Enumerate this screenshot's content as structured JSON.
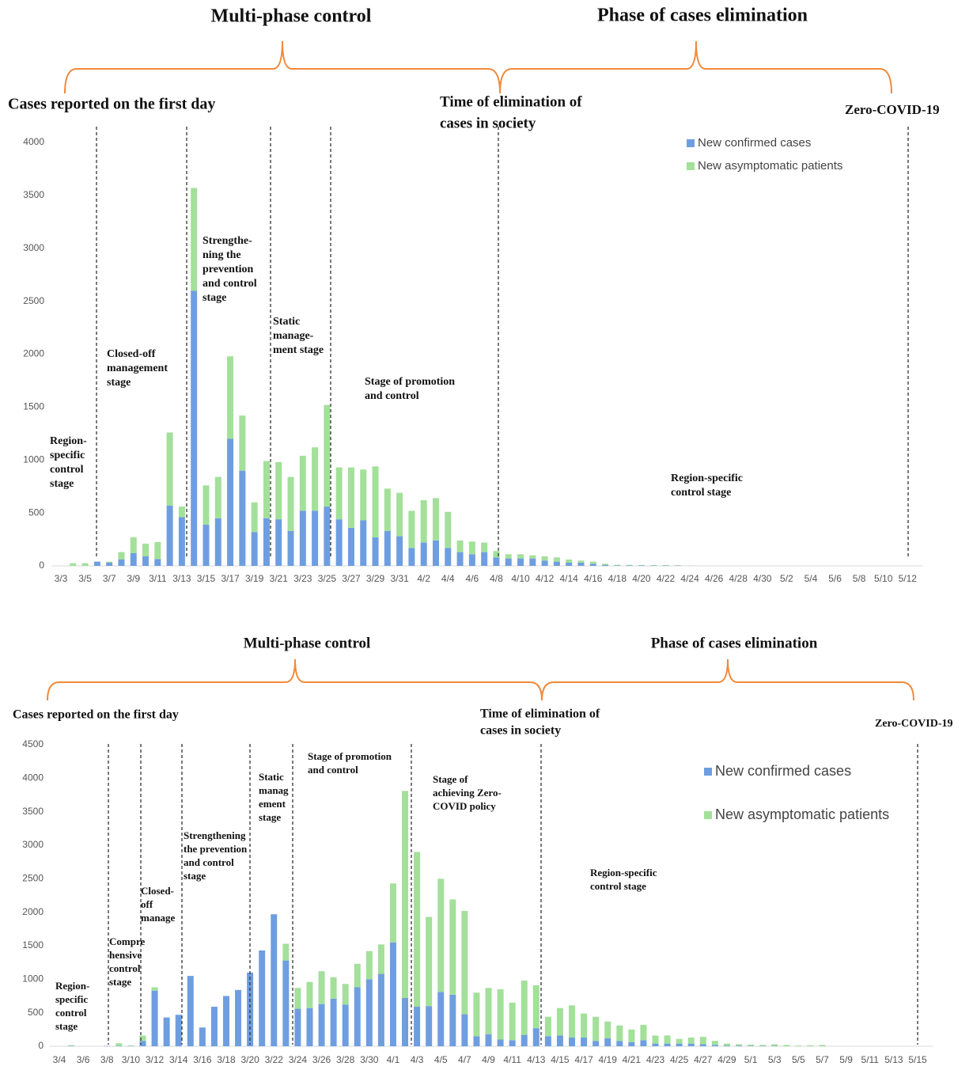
{
  "chart_data": [
    {
      "type": "bar",
      "stacked": true,
      "categories": [
        "3/3",
        null,
        "3/5",
        null,
        "3/7",
        null,
        "3/9",
        null,
        "3/11",
        null,
        "3/13",
        null,
        "3/15",
        null,
        "3/17",
        null,
        "3/19",
        null,
        "3/21",
        null,
        "3/23",
        null,
        "3/25",
        null,
        "3/27",
        null,
        "3/29",
        null,
        "3/31",
        null,
        "4/2",
        null,
        "4/4",
        null,
        "4/6",
        null,
        "4/8",
        null,
        "4/10",
        null,
        "4/12",
        null,
        "4/14",
        null,
        "4/16",
        null,
        "4/18",
        null,
        "4/20",
        null,
        "4/22",
        null,
        "4/24",
        null,
        "4/26",
        null,
        "4/28",
        null,
        "4/30",
        null,
        "5/2",
        null,
        "5/4",
        null,
        "5/6",
        null,
        "5/8",
        null,
        "5/10",
        null,
        "5/12"
      ],
      "series": [
        {
          "name": "New confirmed cases",
          "color": "#6f9ee0",
          "values": [
            0,
            0,
            0,
            40,
            30,
            60,
            120,
            90,
            65,
            570,
            460,
            2600,
            390,
            450,
            1200,
            900,
            320,
            450,
            440,
            330,
            520,
            520,
            560,
            440,
            360,
            430,
            270,
            330,
            280,
            170,
            220,
            240,
            170,
            130,
            110,
            130,
            80,
            70,
            70,
            70,
            50,
            40,
            30,
            30,
            20,
            10,
            5,
            5,
            5,
            3,
            3,
            3,
            0,
            0,
            0,
            0,
            0,
            0,
            0,
            0,
            0,
            0,
            0,
            0,
            0,
            0,
            0,
            0,
            0,
            0,
            0
          ]
        },
        {
          "name": "New asymptomatic patients",
          "color": "#a3e09a",
          "values": [
            0,
            25,
            25,
            0,
            10,
            70,
            150,
            120,
            160,
            690,
            100,
            970,
            370,
            390,
            780,
            520,
            280,
            540,
            540,
            510,
            520,
            600,
            960,
            490,
            570,
            480,
            670,
            400,
            410,
            350,
            400,
            400,
            340,
            110,
            120,
            90,
            60,
            40,
            40,
            30,
            40,
            40,
            30,
            20,
            20,
            10,
            5,
            5,
            3,
            5,
            5,
            3,
            3,
            0,
            0,
            0,
            0,
            0,
            0,
            0,
            0,
            0,
            0,
            0,
            0,
            0,
            0,
            0,
            0,
            0,
            0
          ]
        }
      ],
      "ylim": [
        0,
        4000
      ],
      "yticks": [
        0,
        500,
        1000,
        1500,
        2000,
        2500,
        3000,
        3500,
        4000
      ],
      "annotations": [
        {
          "lines": [
            "Multi-phase control"
          ]
        },
        {
          "lines": [
            "Phase of cases elimination"
          ]
        },
        {
          "lines": [
            "Cases reported on the first day"
          ]
        },
        {
          "lines": [
            "Time of elimination of",
            "cases in society"
          ]
        },
        {
          "lines": [
            "Zero-COVID-19"
          ]
        },
        {
          "lines": [
            "Region-",
            "specific",
            "control",
            "stage"
          ]
        },
        {
          "lines": [
            "Closed-off",
            "management",
            "stage"
          ]
        },
        {
          "lines": [
            "Strengthe-",
            "ning the",
            "prevention",
            "and control",
            "stage"
          ]
        },
        {
          "lines": [
            "Static",
            "manage-",
            "ment stage"
          ]
        },
        {
          "lines": [
            "Stage of promotion",
            "and control"
          ]
        },
        {
          "lines": [
            "Region-specific",
            "control stage"
          ]
        }
      ]
    },
    {
      "type": "bar",
      "stacked": true,
      "categories": [
        "3/4",
        null,
        "3/6",
        null,
        "3/8",
        null,
        "3/10",
        null,
        "3/12",
        null,
        "3/14",
        null,
        "3/16",
        null,
        "3/18",
        null,
        "3/20",
        null,
        "3/22",
        null,
        "3/24",
        null,
        "3/26",
        null,
        "3/28",
        null,
        "3/30",
        null,
        "4/1",
        null,
        "4/3",
        null,
        "4/5",
        null,
        "4/7",
        null,
        "4/9",
        null,
        "4/11",
        null,
        "4/13",
        null,
        "4/15",
        null,
        "4/17",
        null,
        "4/19",
        null,
        "4/21",
        null,
        "4/23",
        null,
        "4/25",
        null,
        "4/27",
        null,
        "4/29",
        null,
        "5/1",
        null,
        "5/3",
        null,
        "5/5",
        null,
        "5/7",
        null,
        "5/9",
        null,
        "5/11",
        null,
        "5/13",
        null,
        "5/15"
      ],
      "series": [
        {
          "name": "New confirmed cases",
          "color": "#6f9ee0",
          "values": [
            0,
            5,
            0,
            0,
            5,
            5,
            5,
            80,
            830,
            430,
            470,
            1050,
            280,
            590,
            750,
            840,
            1100,
            1430,
            1970,
            1280,
            560,
            570,
            630,
            710,
            620,
            880,
            1000,
            1080,
            1550,
            720,
            590,
            600,
            810,
            770,
            480,
            150,
            180,
            100,
            90,
            170,
            270,
            150,
            160,
            130,
            130,
            80,
            120,
            80,
            60,
            90,
            40,
            40,
            40,
            40,
            30,
            20,
            10,
            10,
            5,
            5,
            5,
            0,
            0,
            0,
            0,
            0,
            0,
            0,
            0,
            0,
            0,
            0,
            0
          ]
        },
        {
          "name": "New asymptomatic patients",
          "color": "#a3e09a",
          "values": [
            0,
            10,
            0,
            0,
            0,
            40,
            5,
            80,
            50,
            0,
            0,
            0,
            0,
            0,
            0,
            0,
            0,
            0,
            0,
            250,
            310,
            390,
            490,
            320,
            310,
            350,
            420,
            440,
            880,
            3090,
            2310,
            1330,
            1690,
            1420,
            1540,
            650,
            690,
            750,
            560,
            810,
            640,
            290,
            410,
            480,
            360,
            360,
            250,
            230,
            190,
            230,
            120,
            120,
            70,
            90,
            110,
            60,
            30,
            20,
            20,
            15,
            25,
            20,
            10,
            15,
            20,
            0,
            0,
            0,
            0,
            0,
            0,
            0,
            0
          ]
        }
      ],
      "ylim": [
        0,
        4500
      ],
      "yticks": [
        0,
        500,
        1000,
        1500,
        2000,
        2500,
        3000,
        3500,
        4000,
        4500
      ],
      "annotations": [
        {
          "lines": [
            "Multi-phase control"
          ]
        },
        {
          "lines": [
            "Phase of cases elimination"
          ]
        },
        {
          "lines": [
            "Cases reported on the first day"
          ]
        },
        {
          "lines": [
            "Time of elimination of",
            "cases in society"
          ]
        },
        {
          "lines": [
            "Zero-COVID-19"
          ]
        },
        {
          "lines": [
            "Region-",
            "specific",
            "control",
            "stage"
          ]
        },
        {
          "lines": [
            "Compre",
            "hensive",
            "control",
            "stage"
          ]
        },
        {
          "lines": [
            "Closed-",
            "off",
            "manage"
          ]
        },
        {
          "lines": [
            "Strengthening",
            "the prevention",
            "and control",
            "stage"
          ]
        },
        {
          "lines": [
            "Static",
            "manag",
            "ement",
            "stage"
          ]
        },
        {
          "lines": [
            "Stage of promotion",
            "and control"
          ]
        },
        {
          "lines": [
            "Stage of",
            "achieving Zero-",
            "COVID policy"
          ]
        },
        {
          "lines": [
            "Region-specific",
            "control stage"
          ]
        }
      ]
    }
  ]
}
